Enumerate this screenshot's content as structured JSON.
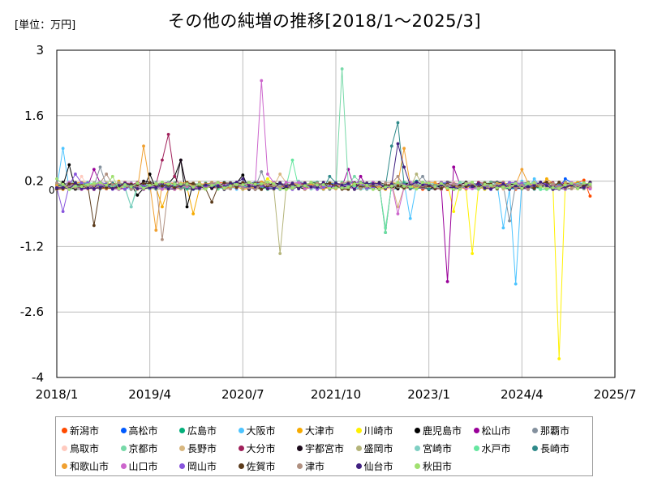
{
  "chart_data": {
    "type": "line",
    "title": "その他の純増の推移[2018/1～2025/3]",
    "unit_label": "[単位：万円]",
    "xlabel": "",
    "ylabel": "",
    "ylim": [
      -4,
      3
    ],
    "y_ticks": [
      3,
      1.6,
      0.2,
      -1.2,
      -2.6,
      -4
    ],
    "y_tick_labels": [
      "3",
      "1.6",
      "0.2",
      "-1.2",
      "-2.6",
      "-4"
    ],
    "zero_label": "0",
    "x_ticks": [
      0,
      15,
      30,
      45,
      60,
      75,
      90
    ],
    "x_tick_labels": [
      "2018/1",
      "2019/4",
      "2020/7",
      "2021/10",
      "2023/1",
      "2024/4",
      "2025/7"
    ],
    "x_count": 87,
    "series": [
      {
        "name": "新潟市",
        "color": "#ff4b00",
        "spikes": {
          "86": -0.12,
          "85": 0.22
        }
      },
      {
        "name": "高松市",
        "color": "#005aff",
        "spikes": {
          "82": 0.25
        }
      },
      {
        "name": "広島市",
        "color": "#03af7a",
        "spikes": {
          "58": 0.2
        }
      },
      {
        "name": "大阪市",
        "color": "#4dc4ff",
        "spikes": {
          "1": 0.9,
          "72": -0.8,
          "74": -2.0,
          "75": 0.2,
          "77": 0.25,
          "57": -0.6,
          "71": 0.15
        }
      },
      {
        "name": "大津市",
        "color": "#f6aa00",
        "spikes": {
          "22": -0.5,
          "17": -0.35,
          "10": 0.2,
          "79": 0.25
        }
      },
      {
        "name": "川崎市",
        "color": "#fff100",
        "spikes": {
          "67": -1.35,
          "81": -3.6,
          "64": -0.45,
          "34": 0.25
        }
      },
      {
        "name": "鹿児島市",
        "color": "#000000",
        "spikes": {
          "2": 0.55,
          "20": 0.65,
          "19": 0.3,
          "15": 0.35,
          "21": -0.35,
          "30": 0.33,
          "13": -0.1
        }
      },
      {
        "name": "松山市",
        "color": "#990099",
        "spikes": {
          "63": -1.95,
          "64": 0.5,
          "53": -0.9,
          "47": 0.45,
          "49": 0.3,
          "6": 0.45
        }
      },
      {
        "name": "那覇市",
        "color": "#84919e",
        "spikes": {
          "7": 0.5,
          "33": 0.4,
          "73": -0.65,
          "59": 0.3
        }
      },
      {
        "name": "鳥取市",
        "color": "#ffcabf",
        "spikes": {
          "4": 0.3
        }
      },
      {
        "name": "京都市",
        "color": "#77d9a8",
        "spikes": {
          "46": 2.6,
          "12": -0.35,
          "53": -0.8,
          "48": 0.3
        }
      },
      {
        "name": "長野市",
        "color": "#d8b780",
        "spikes": {
          "36": 0.35,
          "55": -0.35
        }
      },
      {
        "name": "大分市",
        "color": "#a0205a",
        "spikes": {
          "18": 1.2,
          "17": 0.65,
          "19": 0.3
        }
      },
      {
        "name": "宇都宮市",
        "color": "#1a0a1a",
        "spikes": {
          "20": 0.65,
          "14": 0.2
        }
      },
      {
        "name": "盛岡市",
        "color": "#b4b47a",
        "spikes": {
          "36": -1.35,
          "58": 0.35
        }
      },
      {
        "name": "宮崎市",
        "color": "#7fcfc3",
        "spikes": {
          "12": -0.35,
          "39": 0.2
        }
      },
      {
        "name": "水戸市",
        "color": "#66e6a0",
        "spikes": {
          "38": 0.65,
          "53": -0.9
        }
      },
      {
        "name": "長崎市",
        "color": "#2f8a8a",
        "spikes": {
          "54": 0.95,
          "55": 1.45,
          "44": 0.3
        }
      },
      {
        "name": "和歌山市",
        "color": "#f0a030",
        "spikes": {
          "14": 0.95,
          "16": -0.85,
          "56": 0.9,
          "75": 0.45
        }
      },
      {
        "name": "山口市",
        "color": "#cc66cc",
        "spikes": {
          "33": 2.35,
          "55": -0.5,
          "34": 0.35
        }
      },
      {
        "name": "岡山市",
        "color": "#8855dd",
        "spikes": {
          "1": -0.45,
          "3": 0.35
        }
      },
      {
        "name": "佐賀市",
        "color": "#5a3a1a",
        "spikes": {
          "6": -0.75,
          "25": -0.25
        }
      },
      {
        "name": "津市",
        "color": "#b09080",
        "spikes": {
          "17": -1.05,
          "8": 0.35,
          "55": 0.3
        }
      },
      {
        "name": "仙台市",
        "color": "#402080",
        "spikes": {
          "55": 1.0,
          "56": 0.5,
          "30": 0.25
        }
      },
      {
        "name": "秋田市",
        "color": "#a0e070",
        "spikes": {
          "0": 0.25,
          "9": 0.3
        }
      }
    ]
  }
}
